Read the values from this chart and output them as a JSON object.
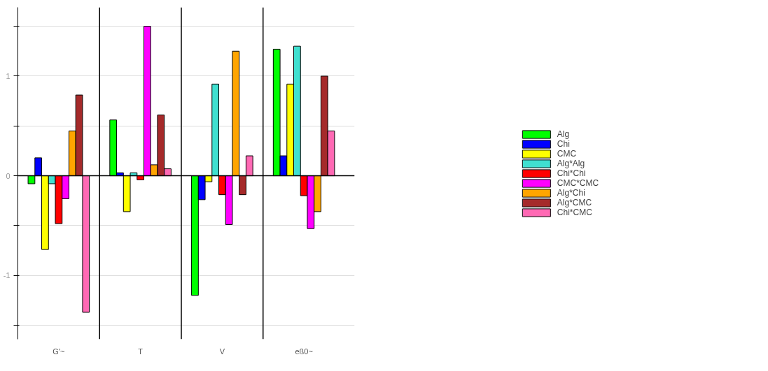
{
  "chart_data": {
    "type": "bar",
    "categories": [
      "G'~",
      "T",
      "V",
      "eß0~"
    ],
    "series": [
      {
        "name": "Alg",
        "color": "#00ff00",
        "values": [
          -0.08,
          0.56,
          -1.2,
          1.27
        ]
      },
      {
        "name": "Chi",
        "color": "#0000ff",
        "values": [
          0.18,
          0.03,
          -0.24,
          0.2
        ]
      },
      {
        "name": "CMC",
        "color": "#ffff00",
        "values": [
          -0.74,
          -0.36,
          -0.06,
          0.92
        ]
      },
      {
        "name": "Alg*Alg",
        "color": "#40e0d0",
        "values": [
          -0.08,
          0.03,
          0.92,
          1.3
        ]
      },
      {
        "name": "Chi*Chi",
        "color": "#ff0000",
        "values": [
          -0.48,
          -0.04,
          -0.19,
          -0.2
        ]
      },
      {
        "name": "CMC*CMC",
        "color": "#ff00ff",
        "values": [
          -0.23,
          1.5,
          -0.49,
          -0.53
        ]
      },
      {
        "name": "Alg*Chi",
        "color": "#ffa500",
        "values": [
          0.45,
          0.11,
          1.25,
          -0.36
        ]
      },
      {
        "name": "Alg*CMC",
        "color": "#a52a2a",
        "values": [
          0.81,
          0.61,
          -0.19,
          1.0
        ]
      },
      {
        "name": "Chi*CMC",
        "color": "#ff69b4",
        "values": [
          -1.37,
          0.07,
          0.2,
          0.45
        ]
      }
    ],
    "ylim": [
      -1.64,
      1.69
    ],
    "yticks": [
      {
        "value": -1.5,
        "label": null
      },
      -1,
      {
        "value": -0.5,
        "label": null
      },
      0,
      {
        "value": 0.5,
        "label": null
      },
      1,
      {
        "value": 1.5,
        "label": null
      }
    ],
    "grid": "y",
    "legend": "right"
  }
}
